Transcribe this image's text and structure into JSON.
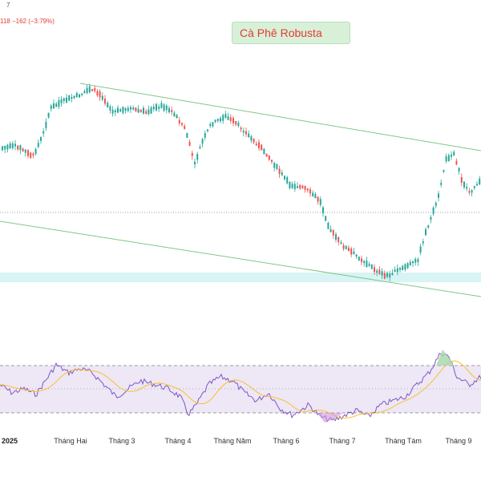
{
  "header": {
    "top_fragment": "7",
    "change_text": "118  −162 (−3.79%)"
  },
  "title": "Cà Phê Robusta",
  "chart_data": [
    {
      "type": "candlestick",
      "title": "Cà Phê Robusta",
      "x_tick_labels": [
        "2025",
        "Tháng Hai",
        "Tháng 3",
        "Tháng 4",
        "Tháng Năm",
        "Tháng 6",
        "Tháng 7",
        "Tháng Tám",
        "Tháng 9"
      ],
      "grid": false,
      "colors": {
        "up": "#26a69a",
        "down": "#ef5350",
        "channel": "#81c784",
        "zone": "#d8f4f4",
        "dotted": "#9e9e9e"
      }
    },
    {
      "type": "line",
      "title": "",
      "indicator": "RSI",
      "series": [
        {
          "color": "#7e57c2"
        },
        {
          "color": "#fbc02d"
        }
      ],
      "colors": {
        "band": "#ede7f6",
        "band_border": "#9e9e9e",
        "overbought": "#a5d6a7",
        "oversold": "#ce93d8"
      }
    }
  ]
}
